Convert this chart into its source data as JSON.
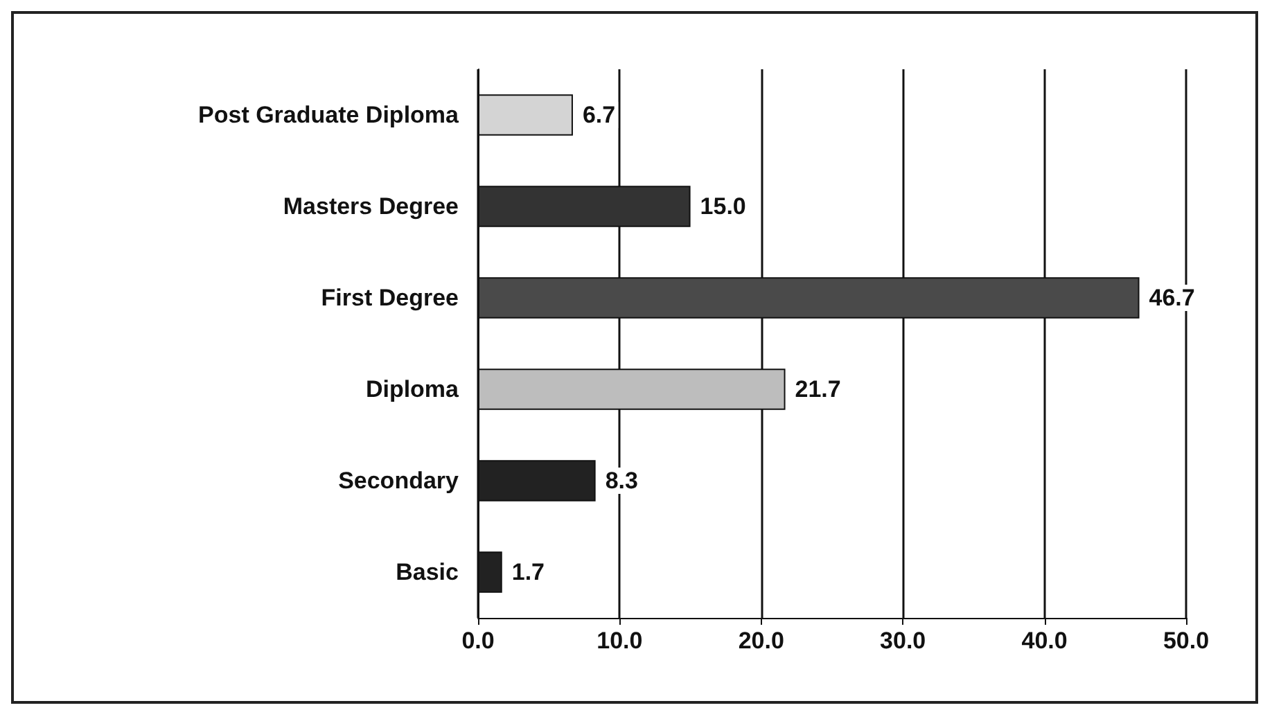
{
  "chart_data": {
    "type": "bar",
    "orientation": "horizontal",
    "categories": [
      "Post Graduate Diploma",
      "Masters Degree",
      "First Degree",
      "Diploma",
      "Secondary",
      "Basic"
    ],
    "values": [
      6.7,
      15.0,
      46.7,
      21.7,
      8.3,
      1.7
    ],
    "colors": [
      "#d4d4d4",
      "#333333",
      "#4a4a4a",
      "#bdbdbd",
      "#222222",
      "#222222"
    ],
    "value_labels": [
      "6.7",
      "15.0",
      "46.7",
      "21.7",
      "8.3",
      "1.7"
    ],
    "xlim": [
      0,
      50
    ],
    "xticks": [
      {
        "value": 0,
        "label": "0.0"
      },
      {
        "value": 10,
        "label": "10.0"
      },
      {
        "value": 20,
        "label": "20.0"
      },
      {
        "value": 30,
        "label": "30.0"
      },
      {
        "value": 40,
        "label": "40.0"
      },
      {
        "value": 50,
        "label": "50.0"
      }
    ],
    "grid": "x"
  }
}
